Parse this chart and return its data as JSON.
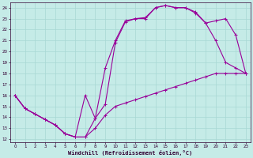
{
  "xlabel": "Windchill (Refroidissement éolien,°C)",
  "xlim": [
    -0.5,
    23.5
  ],
  "ylim": [
    11.7,
    24.5
  ],
  "xticks": [
    0,
    1,
    2,
    3,
    4,
    5,
    6,
    7,
    8,
    9,
    10,
    11,
    12,
    13,
    14,
    15,
    16,
    17,
    18,
    19,
    20,
    21,
    22,
    23
  ],
  "yticks": [
    12,
    13,
    14,
    15,
    16,
    17,
    18,
    19,
    20,
    21,
    22,
    23,
    24
  ],
  "bg_color": "#c5ebe7",
  "line_color": "#990099",
  "grid_color": "#a8d8d4",
  "curve1_x": [
    0,
    1,
    2,
    3,
    4,
    5,
    6,
    7,
    8,
    9,
    10,
    11,
    12,
    13,
    14,
    15,
    16,
    17,
    18,
    19,
    20,
    21,
    22,
    23
  ],
  "curve1_y": [
    16,
    14.8,
    14.3,
    13.8,
    13.3,
    12.5,
    12.2,
    12.2,
    13.0,
    14.2,
    15.0,
    15.3,
    15.6,
    15.9,
    16.2,
    16.5,
    16.8,
    17.1,
    17.4,
    17.7,
    18.0,
    18.0,
    18.0,
    18.0
  ],
  "curve2_x": [
    0,
    1,
    2,
    3,
    4,
    5,
    6,
    7,
    8,
    9,
    10,
    11,
    12,
    13,
    14,
    15,
    16,
    17,
    18,
    19,
    20,
    21,
    22,
    23
  ],
  "curve2_y": [
    16,
    14.8,
    14.3,
    13.8,
    13.3,
    12.5,
    12.2,
    16.0,
    13.9,
    18.5,
    21.0,
    22.8,
    23.0,
    23.1,
    24.0,
    24.2,
    24.0,
    24.0,
    23.5,
    22.6,
    22.8,
    23.0,
    21.5,
    18.0
  ],
  "curve3_x": [
    0,
    1,
    2,
    3,
    4,
    5,
    6,
    7,
    8,
    9,
    10,
    11,
    12,
    13,
    14,
    15,
    16,
    17,
    18,
    19,
    20,
    21,
    22,
    23
  ],
  "curve3_y": [
    16,
    14.8,
    14.3,
    13.8,
    13.3,
    12.5,
    12.2,
    12.2,
    13.9,
    15.2,
    20.8,
    22.7,
    23.0,
    23.0,
    24.0,
    24.2,
    24.0,
    24.0,
    23.6,
    22.6,
    21.0,
    19.0,
    18.5,
    18.0
  ]
}
